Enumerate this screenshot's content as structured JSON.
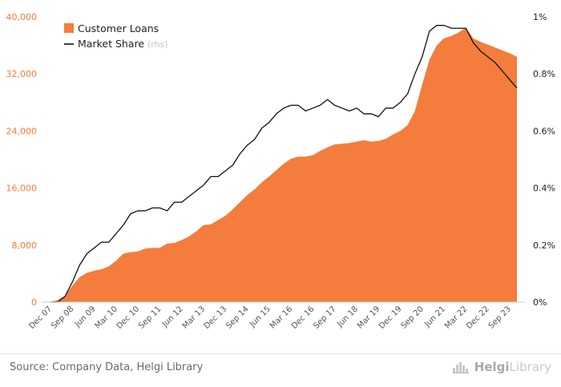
{
  "chart_data": {
    "type": "area",
    "x": [
      "Dec 07",
      "Mar 08",
      "Jun 08",
      "Sep 08",
      "Dec 08",
      "Mar 09",
      "Jun 09",
      "Sep 09",
      "Dec 09",
      "Mar 10",
      "Jun 10",
      "Sep 10",
      "Dec 10",
      "Mar 11",
      "Jun 11",
      "Sep 11",
      "Dec 11",
      "Mar 12",
      "Jun 12",
      "Sep 12",
      "Dec 12",
      "Mar 13",
      "Jun 13",
      "Sep 13",
      "Dec 13",
      "Mar 14",
      "Jun 14",
      "Sep 14",
      "Dec 14",
      "Mar 15",
      "Jun 15",
      "Sep 15",
      "Dec 15",
      "Mar 16",
      "Jun 16",
      "Sep 16",
      "Dec 16",
      "Mar 17",
      "Jun 17",
      "Sep 17",
      "Dec 17",
      "Mar 18",
      "Jun 18",
      "Sep 18",
      "Dec 18",
      "Mar 19",
      "Jun 19",
      "Sep 19",
      "Dec 19",
      "Mar 20",
      "Jun 20",
      "Sep 20",
      "Dec 20",
      "Mar 21",
      "Jun 21",
      "Sep 21",
      "Dec 21",
      "Mar 22",
      "Jun 22",
      "Sep 22",
      "Dec 22",
      "Mar 23",
      "Jun 23",
      "Sep 23",
      "Dec 23"
    ],
    "x_tick_labels": [
      "Dec 07",
      "Sep 08",
      "Jun 09",
      "Mar 10",
      "Dec 10",
      "Sep 11",
      "Jun 12",
      "Mar 13",
      "Dec 13",
      "Sep 14",
      "Jun 15",
      "Mar 16",
      "Dec 16",
      "Sep 17",
      "Jun 18",
      "Mar 19",
      "Dec 19",
      "Sep 20",
      "Jun 21",
      "Mar 22",
      "Dec 22",
      "Sep 23"
    ],
    "left_axis": {
      "ylim": [
        0,
        40000
      ],
      "ticks": [
        "0",
        "8,000",
        "16,000",
        "24,000",
        "32,000",
        "40,000"
      ]
    },
    "right_axis": {
      "ylim": [
        0,
        1.0
      ],
      "ticks": [
        "0%",
        "0.2%",
        "0.4%",
        "0.6%",
        "0.8%",
        "1%"
      ]
    },
    "series": [
      {
        "name": "Customer Loans",
        "kind": "area",
        "axis": "left",
        "color": "#f47c3c",
        "values": [
          0,
          300,
          900,
          2300,
          3500,
          4100,
          4400,
          4600,
          5000,
          5800,
          6800,
          7000,
          7100,
          7500,
          7600,
          7600,
          8200,
          8300,
          8700,
          9200,
          9900,
          10800,
          10900,
          11500,
          12100,
          13000,
          14000,
          15000,
          15800,
          16800,
          17600,
          18500,
          19400,
          20100,
          20400,
          20400,
          20600,
          21200,
          21700,
          22100,
          22200,
          22300,
          22500,
          22700,
          22500,
          22600,
          22900,
          23500,
          24000,
          24800,
          26800,
          30500,
          34000,
          36000,
          37000,
          37300,
          37800,
          38500,
          37000,
          36500,
          36100,
          35700,
          35300,
          34900,
          34400
        ]
      },
      {
        "name": "Market Share",
        "name_note": "(rhs)",
        "kind": "line",
        "axis": "right",
        "color": "#111111",
        "values": [
          0,
          0,
          0.02,
          0.07,
          0.13,
          0.17,
          0.19,
          0.21,
          0.21,
          0.24,
          0.27,
          0.31,
          0.32,
          0.32,
          0.33,
          0.33,
          0.32,
          0.35,
          0.35,
          0.37,
          0.39,
          0.41,
          0.44,
          0.44,
          0.46,
          0.48,
          0.52,
          0.55,
          0.57,
          0.61,
          0.63,
          0.66,
          0.68,
          0.69,
          0.69,
          0.67,
          0.68,
          0.69,
          0.71,
          0.69,
          0.68,
          0.67,
          0.68,
          0.66,
          0.66,
          0.65,
          0.68,
          0.68,
          0.7,
          0.73,
          0.8,
          0.86,
          0.95,
          0.97,
          0.97,
          0.96,
          0.96,
          0.96,
          0.91,
          0.88,
          0.86,
          0.84,
          0.81,
          0.78,
          0.75
        ]
      }
    ],
    "legend_placement": "top-left",
    "grid": false
  },
  "footer": {
    "source": "Source: Company Data, Helgi Library",
    "brand_bold": "Helgi",
    "brand_light": "Library"
  }
}
